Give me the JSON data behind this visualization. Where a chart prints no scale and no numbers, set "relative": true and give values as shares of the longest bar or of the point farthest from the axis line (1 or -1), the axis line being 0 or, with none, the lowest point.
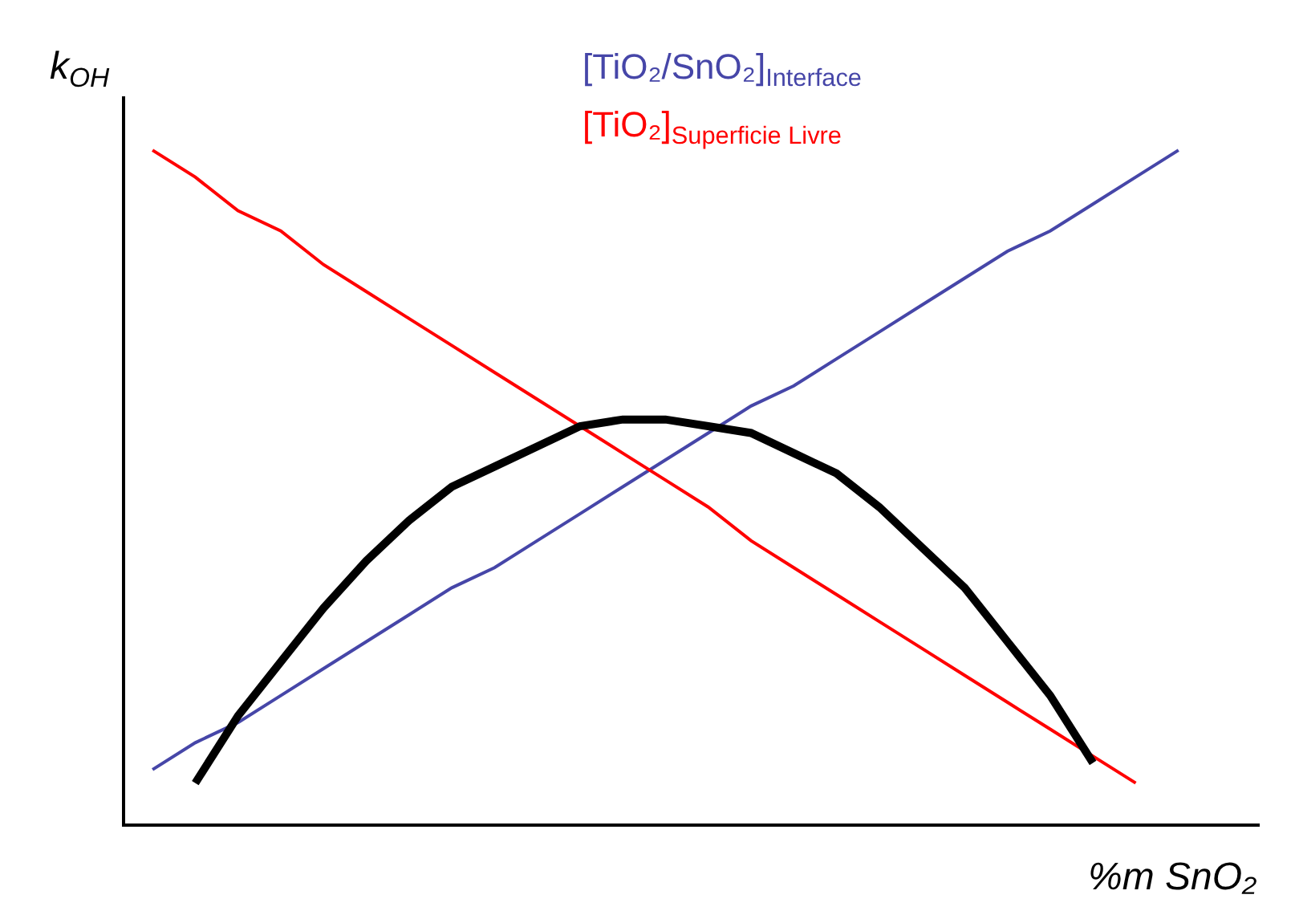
{
  "chart_data": {
    "type": "line",
    "relative": true,
    "xlabel": "%m SnO₂",
    "ylabel": "k$_{OH}$",
    "categories": [
      null,
      null,
      null,
      null,
      null,
      null,
      null,
      null,
      null,
      null,
      null,
      null,
      null,
      null,
      null,
      null,
      null,
      null,
      null,
      null,
      null,
      null,
      null,
      null,
      null
    ],
    "series": [
      {
        "name": "[TiO₂/SnO₂]$_{Interface}$",
        "color": "#4646a8",
        "values": [
          0.08,
          0.12,
          0.15,
          0.19,
          0.23,
          0.27,
          0.31,
          0.35,
          0.38,
          0.42,
          0.46,
          0.5,
          0.54,
          0.58,
          0.62,
          0.65,
          0.69,
          0.73,
          0.77,
          0.81,
          0.85,
          0.88,
          0.92,
          0.96,
          1.0
        ]
      },
      {
        "name": "[TiO₂]$_{Superficie Livre}$",
        "color": "#ff0000",
        "values": [
          1.0,
          0.96,
          0.91,
          0.88,
          0.83,
          0.79,
          0.75,
          0.71,
          0.67,
          0.63,
          0.59,
          0.55,
          0.51,
          0.47,
          0.42,
          0.38,
          0.34,
          0.3,
          0.26,
          0.22,
          0.18,
          0.14,
          0.1,
          0.06,
          null
        ]
      },
      {
        "color": "#000000",
        "values": [
          null,
          0.06,
          0.16,
          0.24,
          0.32,
          0.39,
          0.45,
          0.5,
          0.53,
          0.56,
          0.59,
          0.6,
          0.6,
          0.59,
          0.58,
          0.55,
          0.52,
          0.47,
          0.41,
          0.35,
          0.27,
          0.19,
          0.09,
          null,
          null
        ]
      }
    ],
    "marker": "none",
    "line_style": "solid"
  }
}
